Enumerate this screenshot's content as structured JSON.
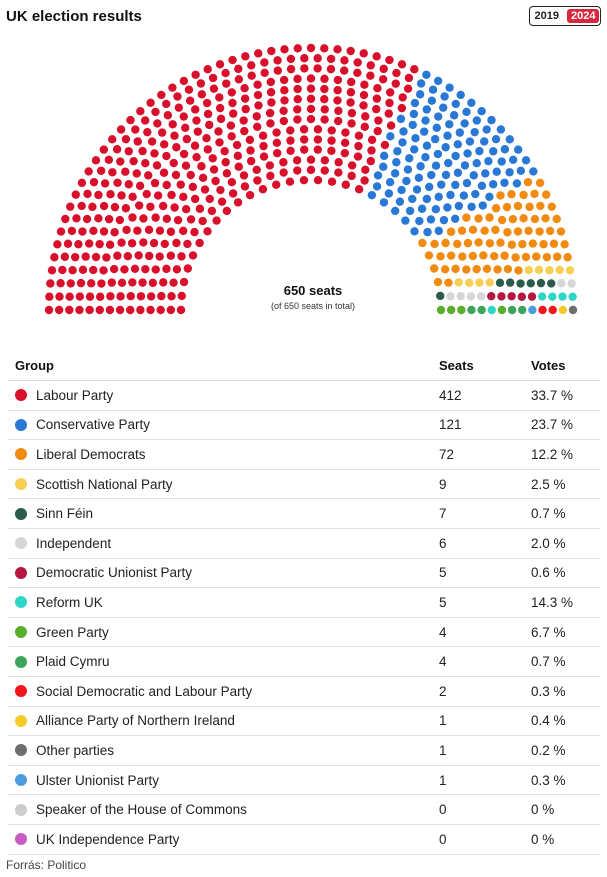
{
  "header": {
    "title": "UK election results",
    "years": [
      "2019",
      "2024"
    ],
    "active_year": "2024"
  },
  "chart_data": {
    "type": "parliament",
    "total_label": "650 seats",
    "total_sub": "(of 650 seats in total)",
    "total_seats": 650,
    "table_headers": {
      "group": "Group",
      "seats": "Seats",
      "votes": "Votes"
    },
    "parties": [
      {
        "name": "Labour Party",
        "seats": 412,
        "votes": "33.7 %",
        "color": "#d8102b"
      },
      {
        "name": "Conservative Party",
        "seats": 121,
        "votes": "23.7 %",
        "color": "#2a78d6"
      },
      {
        "name": "Liberal Democrats",
        "seats": 72,
        "votes": "12.2 %",
        "color": "#f18a11"
      },
      {
        "name": "Scottish National Party",
        "seats": 9,
        "votes": "2.5 %",
        "color": "#f7cf55"
      },
      {
        "name": "Sinn Féin",
        "seats": 7,
        "votes": "0.7 %",
        "color": "#2b5b4b"
      },
      {
        "name": "Independent",
        "seats": 6,
        "votes": "2.0 %",
        "color": "#d6d6d6"
      },
      {
        "name": "Democratic Unionist Party",
        "seats": 5,
        "votes": "0.6 %",
        "color": "#b5173f"
      },
      {
        "name": "Reform UK",
        "seats": 5,
        "votes": "14.3 %",
        "color": "#2fd6c8"
      },
      {
        "name": "Green Party",
        "seats": 4,
        "votes": "6.7 %",
        "color": "#5aae2e"
      },
      {
        "name": "Plaid Cymru",
        "seats": 4,
        "votes": "0.7 %",
        "color": "#3ea45c"
      },
      {
        "name": "Social Democratic and Labour Party",
        "seats": 2,
        "votes": "0.3 %",
        "color": "#f4141b"
      },
      {
        "name": "Alliance Party of Northern Ireland",
        "seats": 1,
        "votes": "0.4 %",
        "color": "#f4cb2a"
      },
      {
        "name": "Other parties",
        "seats": 1,
        "votes": "0.2 %",
        "color": "#6e6e6e"
      },
      {
        "name": "Ulster Unionist Party",
        "seats": 1,
        "votes": "0.3 %",
        "color": "#4a9ee0"
      },
      {
        "name": "Speaker of the House of Commons",
        "seats": 0,
        "votes": "0 %",
        "color": "#cccccc"
      },
      {
        "name": "UK Independence Party",
        "seats": 0,
        "votes": "0 %",
        "color": "#c85cc0"
      }
    ]
  },
  "footer": {
    "source": "Forrás: Politico"
  }
}
